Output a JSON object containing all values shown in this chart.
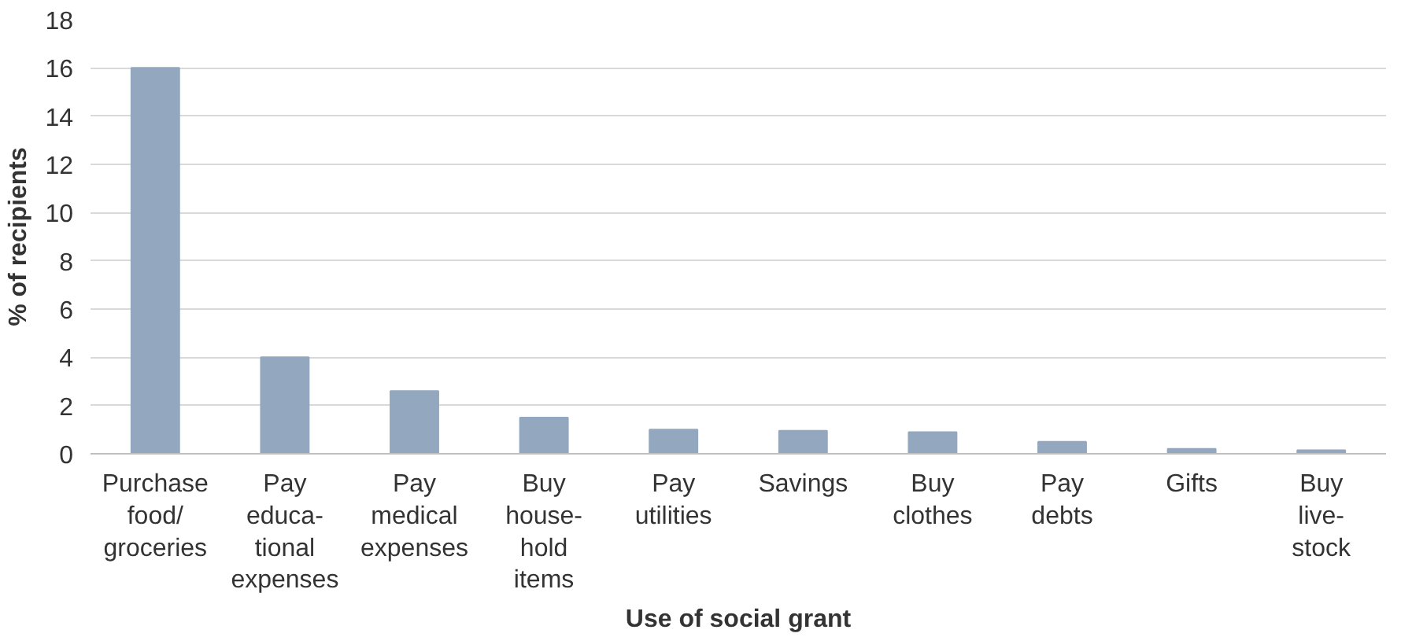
{
  "chart_data": {
    "type": "bar",
    "xlabel": "Use of social grant",
    "ylabel": "% of recipients",
    "categories": [
      "Purchase\nfood/\ngroceries",
      "Pay\neduca-\ntional\nexpenses",
      "Pay\nmedical\nexpenses",
      "Buy\nhouse-\nhold\nitems",
      "Pay\nutilities",
      "Savings",
      "Buy\nclothes",
      "Pay\ndebts",
      "Gifts",
      "Buy\nlive-\nstock"
    ],
    "values": [
      16,
      4,
      2.6,
      1.5,
      1,
      0.95,
      0.9,
      0.5,
      0.2,
      0.15
    ],
    "color": "#93a7bf",
    "ylim": [
      0,
      18
    ],
    "yticks": [
      0,
      2,
      4,
      6,
      8,
      10,
      12,
      14,
      16,
      18
    ],
    "grid": "y"
  }
}
